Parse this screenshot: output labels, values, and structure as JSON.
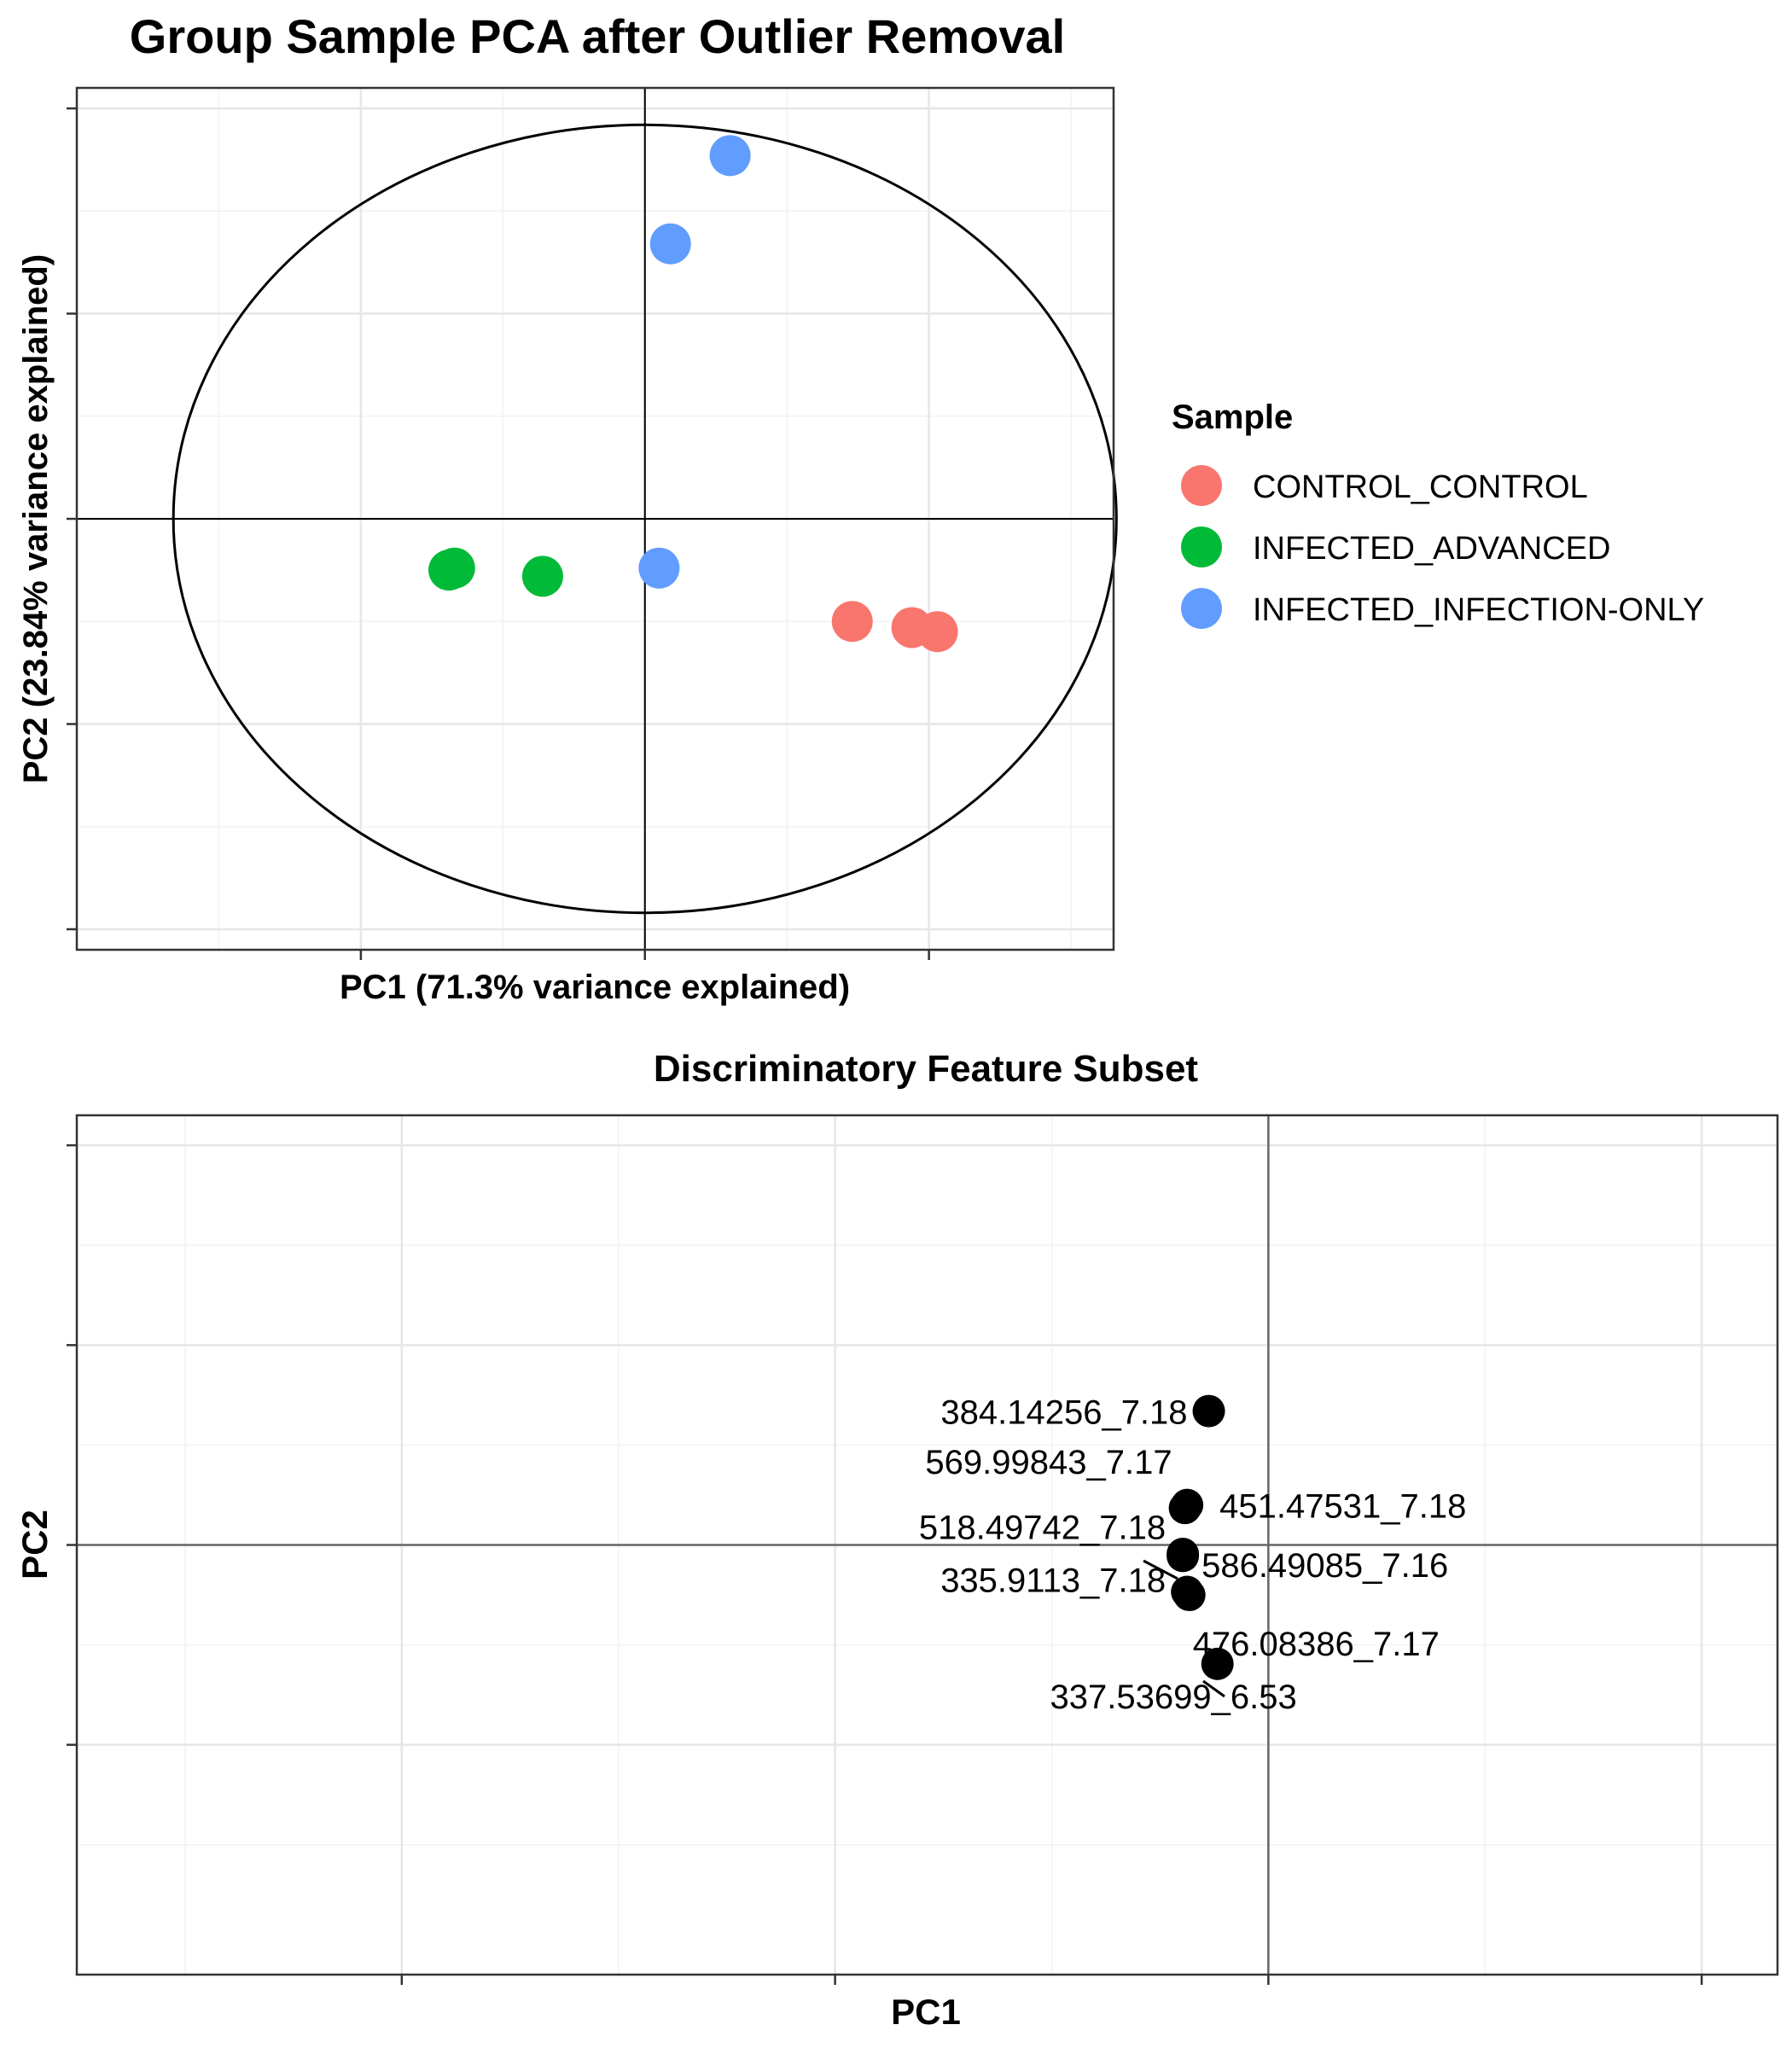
{
  "chart_data": [
    {
      "type": "scatter",
      "title": "Group Sample PCA after Outlier Removal",
      "xlabel": "PC1 (71.3% variance explained)",
      "ylabel": "PC2 (23.84% variance explained)",
      "xlim": [
        -2.0,
        1.65
      ],
      "ylim": [
        -1.05,
        1.05
      ],
      "ticks_labeled": false,
      "grid": true,
      "reference_lines": {
        "x": 0,
        "y": 0
      },
      "confidence_ellipse": {
        "center": [
          0,
          0
        ],
        "rx": 1.66,
        "ry": 0.96
      },
      "legend": {
        "title": "Sample",
        "placement": "right",
        "entries": [
          {
            "label": "CONTROL_CONTROL",
            "color": "#F8766D"
          },
          {
            "label": "INFECTED_ADVANCED",
            "color": "#00BA38"
          },
          {
            "label": "INFECTED_INFECTION-ONLY",
            "color": "#619CFF"
          }
        ]
      },
      "series": [
        {
          "name": "CONTROL_CONTROL",
          "color": "#F8766D",
          "points": [
            {
              "x": 0.73,
              "y": -0.25
            },
            {
              "x": 0.94,
              "y": -0.265
            },
            {
              "x": 1.03,
              "y": -0.275
            }
          ]
        },
        {
          "name": "INFECTED_ADVANCED",
          "color": "#00BA38",
          "points": [
            {
              "x": -0.69,
              "y": -0.125
            },
            {
              "x": -0.67,
              "y": -0.12
            },
            {
              "x": -0.36,
              "y": -0.14
            }
          ]
        },
        {
          "name": "INFECTED_INFECTION-ONLY",
          "color": "#619CFF",
          "points": [
            {
              "x": 0.3,
              "y": 0.885
            },
            {
              "x": 0.09,
              "y": 0.67
            },
            {
              "x": 0.05,
              "y": -0.12
            }
          ]
        }
      ]
    },
    {
      "type": "scatter",
      "title": "Discriminatory Feature Subset",
      "xlabel": "PC1",
      "ylabel": "PC2",
      "xlim": [
        -0.55,
        0.235
      ],
      "ylim": [
        -0.43,
        0.43
      ],
      "ticks_labeled": false,
      "grid": true,
      "reference_lines": {
        "x": 0,
        "y": 0
      },
      "point_color": "#000000",
      "points": [
        {
          "label": "384.14256_7.18",
          "x": -0.0275,
          "y": 0.134
        },
        {
          "label": "451.47531_7.18",
          "x": -0.0375,
          "y": 0.04
        },
        {
          "label": "569.99843_7.17",
          "x": -0.0385,
          "y": 0.037
        },
        {
          "label": "586.49085_7.16",
          "x": -0.0395,
          "y": -0.009
        },
        {
          "label": "518.49742_7.18",
          "x": -0.0395,
          "y": -0.011
        },
        {
          "label": "335.9113_7.18",
          "x": -0.0375,
          "y": -0.047
        },
        {
          "label": "476.08386_7.17",
          "x": -0.0365,
          "y": -0.05
        },
        {
          "label": "337.53699_6.53",
          "x": -0.0235,
          "y": -0.119
        }
      ]
    }
  ]
}
